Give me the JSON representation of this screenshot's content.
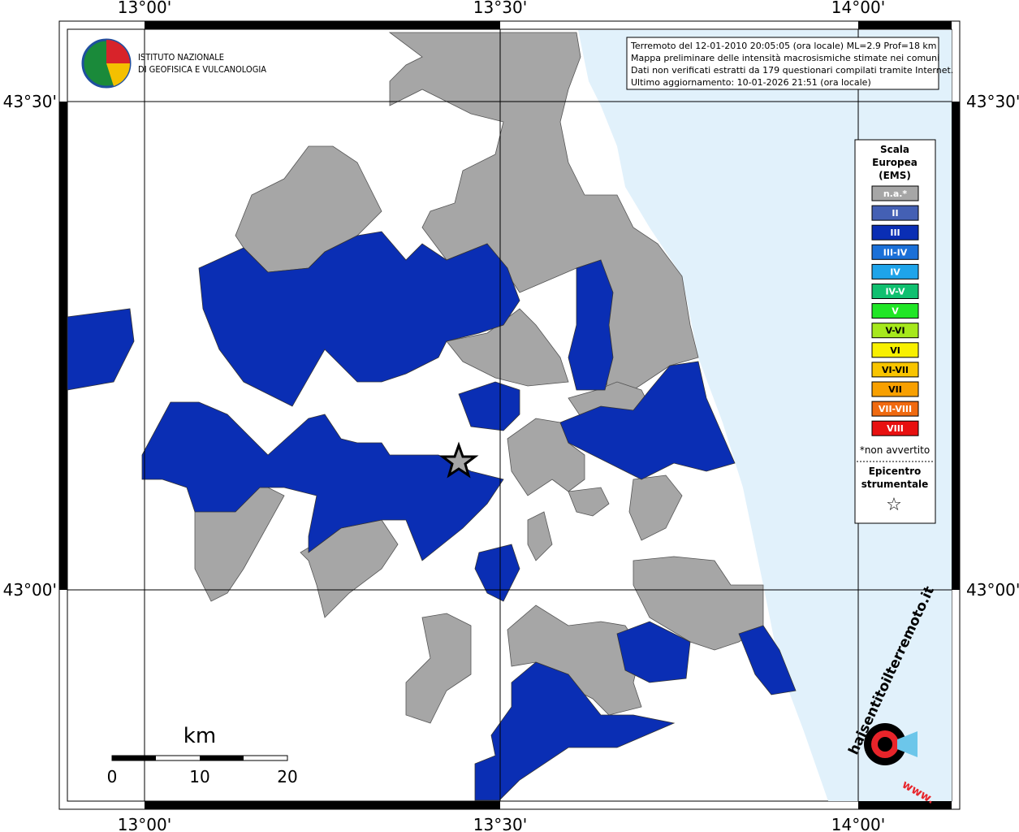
{
  "header": {
    "lines": [
      "Terremoto del 12-01-2010 20:05:05 (ora locale) ML=2.9 Prof=18 km",
      "Mappa preliminare delle intensità macrosismiche stimate nei comuni",
      "Dati non verificati estratti da 179 questionari compilati tramite Internet.",
      "Ultimo aggiornamento: 10-01-2026 21:51 (ora locale)"
    ]
  },
  "logo": {
    "lines": [
      "ISTITUTO NAZIONALE",
      "DI GEOFISICA E VULCANOLOGIA"
    ]
  },
  "axes": {
    "longitudes": [
      "13°00'",
      "13°30'",
      "14°00'"
    ],
    "latitudes": [
      "43°30'",
      "43°00'"
    ]
  },
  "legend": {
    "title": [
      "Scala",
      "Europea",
      "(EMS)"
    ],
    "classes": [
      {
        "label": "n.a.*",
        "color": "#a6a6a6"
      },
      {
        "label": "II",
        "color": "#4460b4"
      },
      {
        "label": "III",
        "color": "#0a2eb4"
      },
      {
        "label": "III-IV",
        "color": "#1a70d8"
      },
      {
        "label": "IV",
        "color": "#1ea4ea"
      },
      {
        "label": "IV-V",
        "color": "#10c070"
      },
      {
        "label": "V",
        "color": "#20e626"
      },
      {
        "label": "V-VI",
        "color": "#a6e81c"
      },
      {
        "label": "VI",
        "color": "#f8f000"
      },
      {
        "label": "VI-VII",
        "color": "#f8c400"
      },
      {
        "label": "VII",
        "color": "#f8a000"
      },
      {
        "label": "VII-VIII",
        "color": "#f06a10"
      },
      {
        "label": "VIII",
        "color": "#e81010"
      }
    ],
    "note": "*non avvertito",
    "epicenter": [
      "Epicentro",
      "strumentale"
    ],
    "symbol": "☆"
  },
  "scale": {
    "unit": "km",
    "ticks": [
      0,
      10,
      20
    ]
  },
  "badge": {
    "site": "haisentitoilterremoto.it",
    "prefix": "www."
  }
}
